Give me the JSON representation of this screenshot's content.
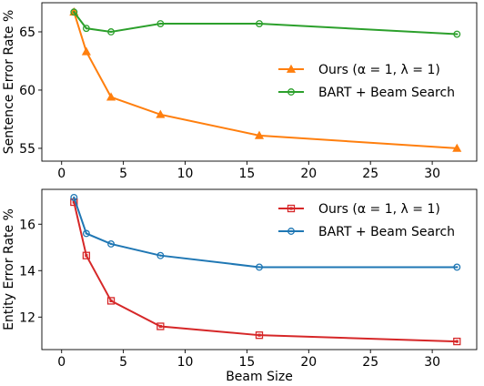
{
  "chart_data": [
    {
      "type": "line",
      "xlabel": "",
      "ylabel": "Sentence Error Rate %",
      "xlim": [
        -1.6,
        33.6
      ],
      "ylim": [
        53.9,
        67.5
      ],
      "xticks": [
        0,
        5,
        10,
        15,
        20,
        25,
        30
      ],
      "yticks": [
        55,
        60,
        65
      ],
      "legend_position": "center-right",
      "grid": false,
      "series": [
        {
          "name": "Ours (α = 1, λ = 1)",
          "color": "#ff7f0e",
          "marker": "triangle",
          "x": [
            1,
            2,
            4,
            8,
            16,
            32
          ],
          "y": [
            66.7,
            63.3,
            59.4,
            57.9,
            56.1,
            55.0
          ]
        },
        {
          "name": "BART + Beam Search",
          "color": "#2ca02c",
          "marker": "circle",
          "x": [
            1,
            2,
            4,
            8,
            16,
            32
          ],
          "y": [
            66.7,
            65.3,
            65.0,
            65.7,
            65.7,
            64.8
          ]
        }
      ]
    },
    {
      "type": "line",
      "xlabel": "Beam Size",
      "ylabel": "Entity Error Rate %",
      "xlim": [
        -1.6,
        33.6
      ],
      "ylim": [
        10.6,
        17.5
      ],
      "xticks": [
        0,
        5,
        10,
        15,
        20,
        25,
        30
      ],
      "yticks": [
        12,
        14,
        16
      ],
      "legend_position": "top-right",
      "grid": false,
      "series": [
        {
          "name": "Ours (α = 1, λ = 1)",
          "color": "#d62728",
          "marker": "square",
          "x": [
            1,
            2,
            4,
            8,
            16,
            32
          ],
          "y": [
            16.95,
            14.65,
            12.7,
            11.6,
            11.22,
            10.95
          ]
        },
        {
          "name": "BART + Beam Search",
          "color": "#1f77b4",
          "marker": "circle",
          "x": [
            1,
            2,
            4,
            8,
            16,
            32
          ],
          "y": [
            17.15,
            15.6,
            15.15,
            14.65,
            14.15,
            14.15
          ]
        }
      ]
    }
  ]
}
